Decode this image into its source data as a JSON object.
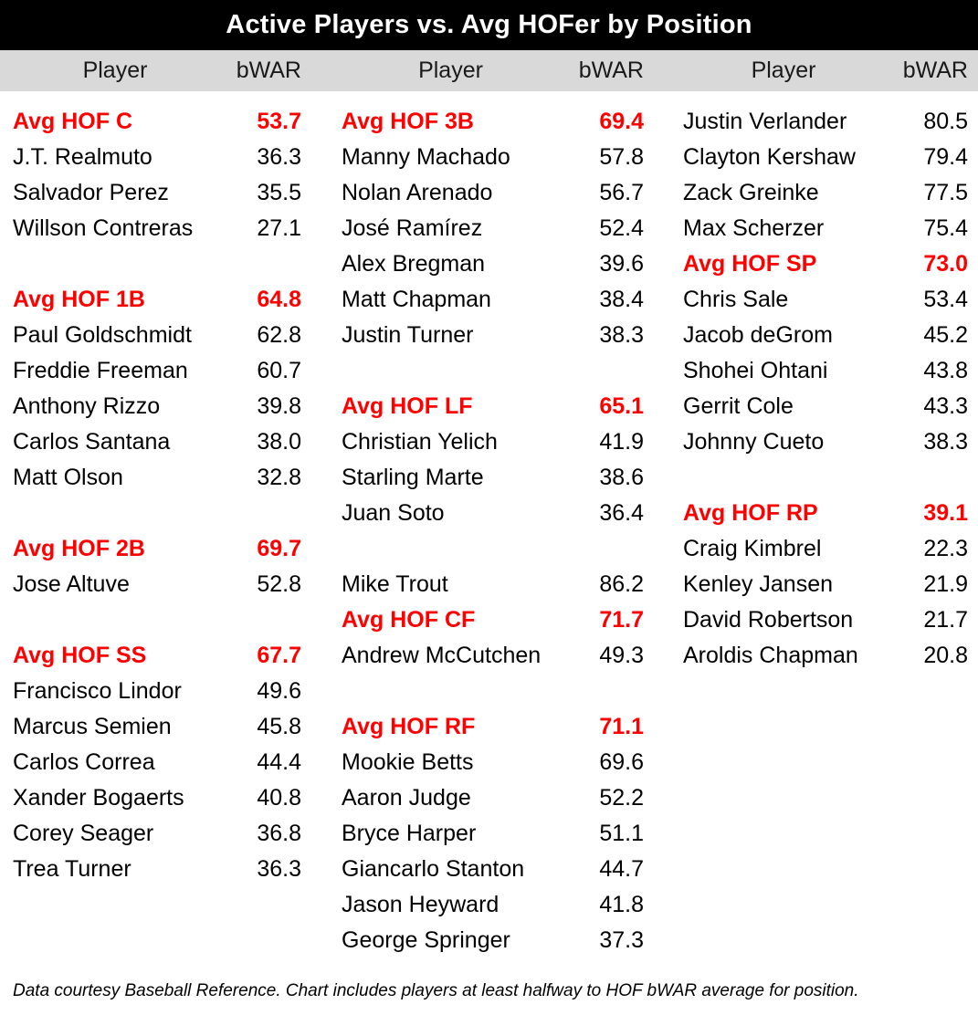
{
  "title": "Active Players vs. Avg HOFer by Position",
  "header": {
    "player_label": "Player",
    "bwar_label": "bWAR"
  },
  "footer": "Data courtesy Baseball Reference. Chart includes players at least halfway to HOF bWAR average for position.",
  "colors": {
    "title_bg": "#000000",
    "title_text": "#FFFFFF",
    "header_bg": "#D9D9D9",
    "hof_red": "#FF0000",
    "body_text": "#000000"
  },
  "grid": {
    "columns": [
      {
        "rows": [
          {
            "name": "Avg HOF C",
            "value": "53.7",
            "hof": true
          },
          {
            "name": "J.T. Realmuto",
            "value": "36.3",
            "hof": false
          },
          {
            "name": "Salvador Perez",
            "value": "35.5",
            "hof": false
          },
          {
            "name": "Willson Contreras",
            "value": "27.1",
            "hof": false
          },
          {
            "name": "",
            "value": "",
            "hof": false
          },
          {
            "name": "Avg HOF 1B",
            "value": "64.8",
            "hof": true
          },
          {
            "name": "Paul Goldschmidt",
            "value": "62.8",
            "hof": false
          },
          {
            "name": "Freddie Freeman",
            "value": "60.7",
            "hof": false
          },
          {
            "name": "Anthony Rizzo",
            "value": "39.8",
            "hof": false
          },
          {
            "name": "Carlos Santana",
            "value": "38.0",
            "hof": false
          },
          {
            "name": "Matt Olson",
            "value": "32.8",
            "hof": false
          },
          {
            "name": "",
            "value": "",
            "hof": false
          },
          {
            "name": "Avg HOF 2B",
            "value": "69.7",
            "hof": true
          },
          {
            "name": "Jose Altuve",
            "value": "52.8",
            "hof": false
          },
          {
            "name": "",
            "value": "",
            "hof": false
          },
          {
            "name": "Avg HOF SS",
            "value": "67.7",
            "hof": true
          },
          {
            "name": "Francisco Lindor",
            "value": "49.6",
            "hof": false
          },
          {
            "name": "Marcus Semien",
            "value": "45.8",
            "hof": false
          },
          {
            "name": "Carlos Correa",
            "value": "44.4",
            "hof": false
          },
          {
            "name": "Xander Bogaerts",
            "value": "40.8",
            "hof": false
          },
          {
            "name": "Corey Seager",
            "value": "36.8",
            "hof": false
          },
          {
            "name": "Trea Turner",
            "value": "36.3",
            "hof": false
          },
          {
            "name": "",
            "value": "",
            "hof": false
          },
          {
            "name": "",
            "value": "",
            "hof": false
          }
        ]
      },
      {
        "rows": [
          {
            "name": "Avg HOF 3B",
            "value": "69.4",
            "hof": true
          },
          {
            "name": "Manny Machado",
            "value": "57.8",
            "hof": false
          },
          {
            "name": "Nolan Arenado",
            "value": "56.7",
            "hof": false
          },
          {
            "name": "José Ramírez",
            "value": "52.4",
            "hof": false
          },
          {
            "name": "Alex Bregman",
            "value": "39.6",
            "hof": false
          },
          {
            "name": "Matt Chapman",
            "value": "38.4",
            "hof": false
          },
          {
            "name": "Justin Turner",
            "value": "38.3",
            "hof": false
          },
          {
            "name": "",
            "value": "",
            "hof": false
          },
          {
            "name": "Avg HOF LF",
            "value": "65.1",
            "hof": true
          },
          {
            "name": "Christian Yelich",
            "value": "41.9",
            "hof": false
          },
          {
            "name": "Starling Marte",
            "value": "38.6",
            "hof": false
          },
          {
            "name": "Juan Soto",
            "value": "36.4",
            "hof": false
          },
          {
            "name": "",
            "value": "",
            "hof": false
          },
          {
            "name": "Mike Trout",
            "value": "86.2",
            "hof": false
          },
          {
            "name": "Avg HOF CF",
            "value": "71.7",
            "hof": true
          },
          {
            "name": "Andrew McCutchen",
            "value": "49.3",
            "hof": false
          },
          {
            "name": "",
            "value": "",
            "hof": false
          },
          {
            "name": "Avg HOF RF",
            "value": "71.1",
            "hof": true
          },
          {
            "name": "Mookie Betts",
            "value": "69.6",
            "hof": false
          },
          {
            "name": "Aaron Judge",
            "value": "52.2",
            "hof": false
          },
          {
            "name": "Bryce Harper",
            "value": "51.1",
            "hof": false
          },
          {
            "name": "Giancarlo Stanton",
            "value": "44.7",
            "hof": false
          },
          {
            "name": "Jason Heyward",
            "value": "41.8",
            "hof": false
          },
          {
            "name": "George Springer",
            "value": "37.3",
            "hof": false
          }
        ]
      },
      {
        "rows": [
          {
            "name": "Justin Verlander",
            "value": "80.5",
            "hof": false
          },
          {
            "name": "Clayton Kershaw",
            "value": "79.4",
            "hof": false
          },
          {
            "name": "Zack Greinke",
            "value": "77.5",
            "hof": false
          },
          {
            "name": "Max Scherzer",
            "value": "75.4",
            "hof": false
          },
          {
            "name": "Avg HOF SP",
            "value": "73.0",
            "hof": true
          },
          {
            "name": "Chris Sale",
            "value": "53.4",
            "hof": false
          },
          {
            "name": "Jacob deGrom",
            "value": "45.2",
            "hof": false
          },
          {
            "name": "Shohei Ohtani",
            "value": "43.8",
            "hof": false
          },
          {
            "name": "Gerrit Cole",
            "value": "43.3",
            "hof": false
          },
          {
            "name": "Johnny Cueto",
            "value": "38.3",
            "hof": false
          },
          {
            "name": "",
            "value": "",
            "hof": false
          },
          {
            "name": "Avg HOF RP",
            "value": "39.1",
            "hof": true
          },
          {
            "name": "Craig Kimbrel",
            "value": "22.3",
            "hof": false
          },
          {
            "name": "Kenley Jansen",
            "value": "21.9",
            "hof": false
          },
          {
            "name": "David Robertson",
            "value": "21.7",
            "hof": false
          },
          {
            "name": "Aroldis Chapman",
            "value": "20.8",
            "hof": false
          },
          {
            "name": "",
            "value": "",
            "hof": false
          },
          {
            "name": "",
            "value": "",
            "hof": false
          },
          {
            "name": "",
            "value": "",
            "hof": false
          },
          {
            "name": "",
            "value": "",
            "hof": false
          },
          {
            "name": "",
            "value": "",
            "hof": false
          },
          {
            "name": "",
            "value": "",
            "hof": false
          },
          {
            "name": "",
            "value": "",
            "hof": false
          },
          {
            "name": "",
            "value": "",
            "hof": false
          }
        ]
      }
    ]
  },
  "chart_data": {
    "type": "table",
    "title": "Active Players vs. Avg HOFer by Position",
    "columns": [
      "Player",
      "bWAR"
    ],
    "footnote": "Data courtesy Baseball Reference. Chart includes players at least halfway to HOF bWAR average for position.",
    "sections": [
      {
        "position": "C",
        "avg_hof_label": "Avg HOF C",
        "avg_hof_bwar": 53.7,
        "players": [
          {
            "name": "J.T. Realmuto",
            "bwar": 36.3
          },
          {
            "name": "Salvador Perez",
            "bwar": 35.5
          },
          {
            "name": "Willson Contreras",
            "bwar": 27.1
          }
        ]
      },
      {
        "position": "1B",
        "avg_hof_label": "Avg HOF 1B",
        "avg_hof_bwar": 64.8,
        "players": [
          {
            "name": "Paul Goldschmidt",
            "bwar": 62.8
          },
          {
            "name": "Freddie Freeman",
            "bwar": 60.7
          },
          {
            "name": "Anthony Rizzo",
            "bwar": 39.8
          },
          {
            "name": "Carlos Santana",
            "bwar": 38.0
          },
          {
            "name": "Matt Olson",
            "bwar": 32.8
          }
        ]
      },
      {
        "position": "2B",
        "avg_hof_label": "Avg HOF 2B",
        "avg_hof_bwar": 69.7,
        "players": [
          {
            "name": "Jose Altuve",
            "bwar": 52.8
          }
        ]
      },
      {
        "position": "SS",
        "avg_hof_label": "Avg HOF SS",
        "avg_hof_bwar": 67.7,
        "players": [
          {
            "name": "Francisco Lindor",
            "bwar": 49.6
          },
          {
            "name": "Marcus Semien",
            "bwar": 45.8
          },
          {
            "name": "Carlos Correa",
            "bwar": 44.4
          },
          {
            "name": "Xander Bogaerts",
            "bwar": 40.8
          },
          {
            "name": "Corey Seager",
            "bwar": 36.8
          },
          {
            "name": "Trea Turner",
            "bwar": 36.3
          }
        ]
      },
      {
        "position": "3B",
        "avg_hof_label": "Avg HOF 3B",
        "avg_hof_bwar": 69.4,
        "players": [
          {
            "name": "Manny Machado",
            "bwar": 57.8
          },
          {
            "name": "Nolan Arenado",
            "bwar": 56.7
          },
          {
            "name": "José Ramírez",
            "bwar": 52.4
          },
          {
            "name": "Alex Bregman",
            "bwar": 39.6
          },
          {
            "name": "Matt Chapman",
            "bwar": 38.4
          },
          {
            "name": "Justin Turner",
            "bwar": 38.3
          }
        ]
      },
      {
        "position": "LF",
        "avg_hof_label": "Avg HOF LF",
        "avg_hof_bwar": 65.1,
        "players": [
          {
            "name": "Christian Yelich",
            "bwar": 41.9
          },
          {
            "name": "Starling Marte",
            "bwar": 38.6
          },
          {
            "name": "Juan Soto",
            "bwar": 36.4
          }
        ]
      },
      {
        "position": "CF",
        "avg_hof_label": "Avg HOF CF",
        "avg_hof_bwar": 71.7,
        "players": [
          {
            "name": "Mike Trout",
            "bwar": 86.2,
            "above_avg": true
          },
          {
            "name": "Andrew McCutchen",
            "bwar": 49.3
          }
        ]
      },
      {
        "position": "RF",
        "avg_hof_label": "Avg HOF RF",
        "avg_hof_bwar": 71.1,
        "players": [
          {
            "name": "Mookie Betts",
            "bwar": 69.6
          },
          {
            "name": "Aaron Judge",
            "bwar": 52.2
          },
          {
            "name": "Bryce Harper",
            "bwar": 51.1
          },
          {
            "name": "Giancarlo Stanton",
            "bwar": 44.7
          },
          {
            "name": "Jason Heyward",
            "bwar": 41.8
          },
          {
            "name": "George Springer",
            "bwar": 37.3
          }
        ]
      },
      {
        "position": "SP",
        "avg_hof_label": "Avg HOF SP",
        "avg_hof_bwar": 73.0,
        "players": [
          {
            "name": "Justin Verlander",
            "bwar": 80.5,
            "above_avg": true
          },
          {
            "name": "Clayton Kershaw",
            "bwar": 79.4,
            "above_avg": true
          },
          {
            "name": "Zack Greinke",
            "bwar": 77.5,
            "above_avg": true
          },
          {
            "name": "Max Scherzer",
            "bwar": 75.4,
            "above_avg": true
          },
          {
            "name": "Chris Sale",
            "bwar": 53.4
          },
          {
            "name": "Jacob deGrom",
            "bwar": 45.2
          },
          {
            "name": "Shohei Ohtani",
            "bwar": 43.8
          },
          {
            "name": "Gerrit Cole",
            "bwar": 43.3
          },
          {
            "name": "Johnny Cueto",
            "bwar": 38.3
          }
        ]
      },
      {
        "position": "RP",
        "avg_hof_label": "Avg HOF RP",
        "avg_hof_bwar": 39.1,
        "players": [
          {
            "name": "Craig Kimbrel",
            "bwar": 22.3
          },
          {
            "name": "Kenley Jansen",
            "bwar": 21.9
          },
          {
            "name": "David Robertson",
            "bwar": 21.7
          },
          {
            "name": "Aroldis Chapman",
            "bwar": 20.8
          }
        ]
      }
    ]
  }
}
